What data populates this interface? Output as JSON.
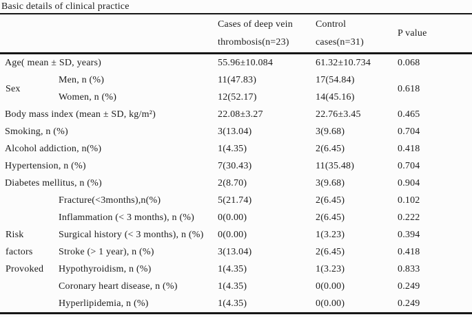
{
  "title": "Basic details of clinical practice",
  "header": {
    "dvt": "Cases of deep vein thrombosis(n=23)",
    "control": "Control cases(n=31)",
    "p": "P value"
  },
  "rows": {
    "age": {
      "label": "Age( mean ± SD, years)",
      "dvt": "55.96±10.084",
      "control": "61.32±10.734",
      "p": "0.068"
    },
    "sex": {
      "group": "Sex",
      "p": "0.618",
      "men": {
        "label": "Men, n (%)",
        "dvt": "11(47.83)",
        "control": "17(54.84)"
      },
      "women": {
        "label": "Women, n (%)",
        "dvt": "12(52.17)",
        "control": "14(45.16)"
      }
    },
    "bmi": {
      "label": "Body mass index (mean ± SD, kg/m²)",
      "dvt": "22.08±3.27",
      "control": "22.76±3.45",
      "p": "0.465"
    },
    "smoking": {
      "label": "Smoking, n (%)",
      "dvt": "3(13.04)",
      "control": "3(9.68)",
      "p": "0.704"
    },
    "alcohol": {
      "label": "Alcohol addiction, n(%)",
      "dvt": "1(4.35)",
      "control": "2(6.45)",
      "p": "0.418"
    },
    "hypertension": {
      "label": "Hypertension, n (%)",
      "dvt": "7(30.43)",
      "control": "11(35.48)",
      "p": "0.704"
    },
    "diabetes": {
      "label": "Diabetes mellitus, n (%)",
      "dvt": "2(8.70)",
      "control": "3(9.68)",
      "p": "0.904"
    },
    "risk": {
      "group": "Risk factors Provoked",
      "fracture": {
        "label": "Fracture(<3months),n(%)",
        "dvt": "5(21.74)",
        "control": "2(6.45)",
        "p": "0.102"
      },
      "inflammation": {
        "label": "Inflammation (< 3 months), n (%)",
        "dvt": "0(0.00)",
        "control": "2(6.45)",
        "p": "0.222"
      },
      "surgical": {
        "label": "Surgical history (< 3 months), n (%)",
        "dvt": "0(0.00)",
        "control": "1(3.23)",
        "p": "0.394"
      },
      "stroke": {
        "label": "Stroke (> 1 year), n (%)",
        "dvt": "3(13.04)",
        "control": "2(6.45)",
        "p": "0.418"
      },
      "hypothyroidism": {
        "label": "Hypothyroidism, n (%)",
        "dvt": "1(4.35)",
        "control": "1(3.23)",
        "p": "0.833"
      },
      "coronary": {
        "label": "Coronary heart disease, n (%)",
        "dvt": "1(4.35)",
        "control": "0(0.00)",
        "p": "0.249"
      },
      "hyperlipidemia": {
        "label": "Hyperlipidemia, n (%)",
        "dvt": "1(4.35)",
        "control": "0(0.00)",
        "p": "0.249"
      }
    }
  }
}
